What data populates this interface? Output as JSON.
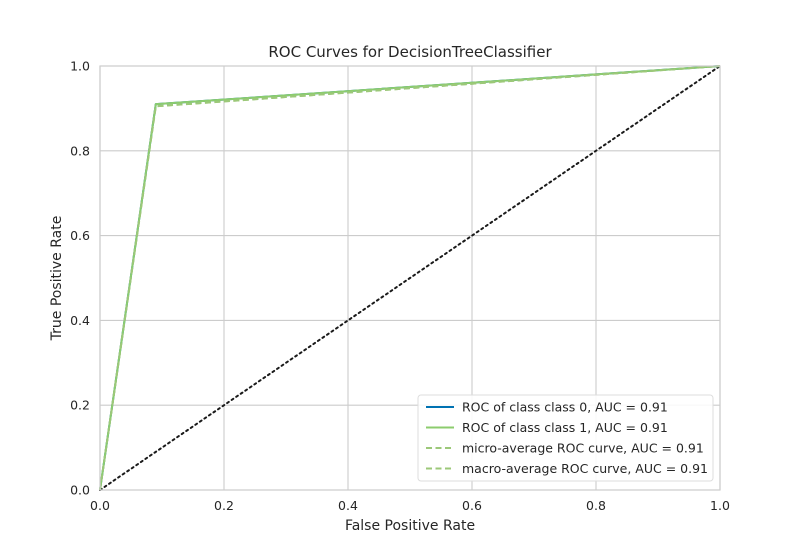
{
  "chart_data": {
    "type": "line",
    "title": "ROC Curves for DecisionTreeClassifier",
    "xlabel": "False Positive Rate",
    "ylabel": "True Positive Rate",
    "xlim": [
      0.0,
      1.0
    ],
    "ylim": [
      0.0,
      1.0
    ],
    "x_ticks": [
      "0.0",
      "0.2",
      "0.4",
      "0.6",
      "0.8",
      "1.0"
    ],
    "y_ticks": [
      "0.0",
      "0.2",
      "0.4",
      "0.6",
      "0.8",
      "1.0"
    ],
    "grid": true,
    "legend_position": "lower-right",
    "series": [
      {
        "name": "ROC of class class 0, AUC = 0.91",
        "color": "#0072b2",
        "style": "solid",
        "x": [
          0.0,
          0.09,
          1.0
        ],
        "y": [
          0.0,
          0.91,
          1.0
        ]
      },
      {
        "name": "ROC of class class 1, AUC = 0.91",
        "color": "#8ccc6e",
        "style": "solid",
        "x": [
          0.0,
          0.09,
          1.0
        ],
        "y": [
          0.0,
          0.91,
          1.0
        ]
      },
      {
        "name": "micro-average ROC curve, AUC = 0.91",
        "color": "#9cc879",
        "style": "dashed",
        "x": [
          0.0,
          0.09,
          1.0
        ],
        "y": [
          0.0,
          0.905,
          1.0
        ]
      },
      {
        "name": "macro-average ROC curve, AUC = 0.91",
        "color": "#9cc879",
        "style": "dashed",
        "x": [
          0.0,
          0.09,
          1.0
        ],
        "y": [
          0.0,
          0.905,
          1.0
        ]
      }
    ],
    "diagonal": {
      "x": [
        0.0,
        1.0
      ],
      "y": [
        0.0,
        1.0
      ],
      "color": "#1a1a1a",
      "style": "dotted"
    }
  }
}
